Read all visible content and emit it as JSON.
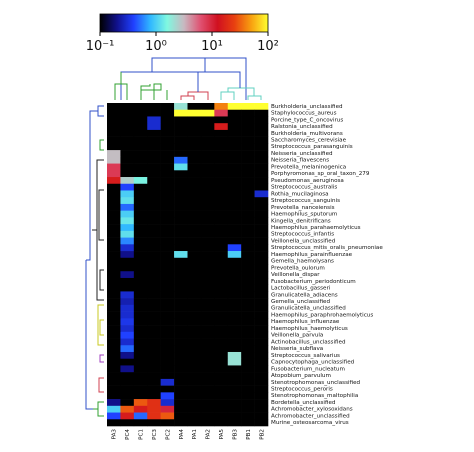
{
  "chart_data": {
    "type": "heatmap",
    "columns": [
      "PA3",
      "PC4",
      "PC1",
      "PC3",
      "PC2",
      "PA4",
      "PA1",
      "PA2",
      "PA5",
      "PB3",
      "PB1",
      "PB2"
    ],
    "rows": [
      "Burkholderia_unclassified",
      "Staphylococcus_aureus",
      "Porcine_type_C_oncovirus",
      "Ralstonia_unclassified",
      "Burkholderia_multivorans",
      "Saccharomyces_cerevisiae",
      "Streptococcus_parasanguinis",
      "Neisseria_unclassified",
      "Neisseria_flavescens",
      "Prevotella_melaninogenica",
      "Porphyromonas_sp_oral_taxon_279",
      "Pseudomonas_aeruginosa",
      "Streptococcus_australis",
      "Rothia_mucilaginosa",
      "Streptococcus_sanguinis",
      "Prevotella_nanceiensis",
      "Haemophilus_sputorum",
      "Kingella_denitrificans",
      "Haemophilus_parahaemolyticus",
      "Streptococcus_infantis",
      "Veillonella_unclassified",
      "Streptococcus_mitis_oralis_pneumoniae",
      "Haemophilus_parainfluenzae",
      "Gemella_haemolysans",
      "Prevotella_oulorum",
      "Veillonella_dispar",
      "Fusobacterium_periodonticum",
      "Lactobacillus_gasseri",
      "Granulicatella_adiacens",
      "Gemella_unclassified",
      "Granulicatella_unclassified",
      "Haemophilus_paraphrohaemolyticus",
      "Haemophilus_influenzae",
      "Haemophilus_haemolyticus",
      "Veillonella_parvula",
      "Actinobacillus_unclassified",
      "Neisseria_subflava",
      "Streptococcus_salivarius",
      "Capnocytophaga_unclassified",
      "Fusobacterium_nucleatum",
      "Atopobium_parvulum",
      "Stenotrophomonas_unclassified",
      "Streptococcus_peroris",
      "Stenotrophomonas_maltophilia",
      "Bordetella_unclassified",
      "Achromobacter_xylosoxidans",
      "Achromobacter_unclassified",
      "Murine_osteosarcoma_virus"
    ],
    "values": [
      [
        0.1,
        0.1,
        0.1,
        0.1,
        0.1,
        2,
        0.1,
        0.1,
        40,
        100,
        100,
        100
      ],
      [
        0.1,
        0.1,
        0.1,
        0.1,
        0.1,
        100,
        100,
        100,
        8,
        0.1,
        0.1,
        0.1
      ],
      [
        0.1,
        0.1,
        0.1,
        0.3,
        0.1,
        0.1,
        0.1,
        0.1,
        0.1,
        0.1,
        0.1,
        0.1
      ],
      [
        0.1,
        0.1,
        0.1,
        0.3,
        0.1,
        0.1,
        0.1,
        0.1,
        15,
        0.1,
        0.1,
        0.1
      ],
      [
        0.1,
        0.1,
        0.1,
        0.1,
        0.1,
        0.1,
        0.1,
        0.1,
        0.1,
        0.1,
        0.1,
        0.1
      ],
      [
        0.1,
        0.1,
        0.1,
        0.1,
        0.1,
        0.1,
        0.1,
        0.1,
        0.1,
        0.1,
        0.1,
        0.1
      ],
      [
        0.1,
        0.1,
        0.1,
        0.1,
        0.1,
        0.1,
        0.1,
        0.1,
        0.1,
        0.1,
        0.1,
        0.1
      ],
      [
        3,
        0.1,
        0.1,
        0.1,
        0.1,
        0.1,
        0.1,
        0.1,
        0.1,
        0.1,
        0.1,
        0.1
      ],
      [
        3,
        0.1,
        0.1,
        0.1,
        0.1,
        0.5,
        0.1,
        0.1,
        0.1,
        0.1,
        0.1,
        0.1
      ],
      [
        8,
        0.1,
        0.1,
        0.1,
        0.1,
        1.2,
        0.1,
        0.1,
        0.1,
        0.1,
        0.1,
        0.1
      ],
      [
        8,
        0.1,
        0.1,
        0.1,
        0.1,
        0.1,
        0.1,
        0.1,
        0.1,
        0.1,
        0.1,
        0.1
      ],
      [
        15,
        2.5,
        1.5,
        0.1,
        0.1,
        0.1,
        0.1,
        0.1,
        0.1,
        0.1,
        0.1,
        0.1
      ],
      [
        0.1,
        0.4,
        0.1,
        0.1,
        0.1,
        0.1,
        0.1,
        0.1,
        0.1,
        0.1,
        0.1,
        0.1
      ],
      [
        0.1,
        1,
        0.1,
        0.1,
        0.1,
        0.1,
        0.1,
        0.1,
        0.1,
        0.1,
        0.1,
        0.3
      ],
      [
        0.1,
        1.2,
        0.1,
        0.1,
        0.1,
        0.1,
        0.1,
        0.1,
        0.1,
        0.1,
        0.1,
        0.1
      ],
      [
        0.1,
        0.5,
        0.1,
        0.1,
        0.1,
        0.1,
        0.1,
        0.1,
        0.1,
        0.1,
        0.1,
        0.1
      ],
      [
        0.1,
        1,
        0.1,
        0.1,
        0.1,
        0.1,
        0.1,
        0.1,
        0.1,
        0.1,
        0.1,
        0.1
      ],
      [
        0.1,
        1.3,
        0.1,
        0.1,
        0.1,
        0.1,
        0.1,
        0.1,
        0.1,
        0.1,
        0.1,
        0.1
      ],
      [
        0.1,
        0.8,
        0.1,
        0.1,
        0.1,
        0.1,
        0.1,
        0.1,
        0.1,
        0.1,
        0.1,
        0.1
      ],
      [
        0.1,
        1.2,
        0.1,
        0.1,
        0.1,
        0.1,
        0.1,
        0.1,
        0.1,
        0.1,
        0.1,
        0.1
      ],
      [
        0.1,
        0.6,
        0.1,
        0.1,
        0.1,
        0.1,
        0.1,
        0.1,
        0.1,
        0.1,
        0.1,
        0.1
      ],
      [
        0.1,
        0.3,
        0.1,
        0.1,
        0.1,
        0.1,
        0.1,
        0.1,
        0.1,
        0.4,
        0.1,
        0.1
      ],
      [
        0.1,
        0.2,
        0.1,
        0.1,
        0.1,
        1.2,
        0.1,
        0.1,
        0.1,
        1,
        0.1,
        0.1
      ],
      [
        0.1,
        0.1,
        0.1,
        0.1,
        0.1,
        0.1,
        0.1,
        0.1,
        0.1,
        0.1,
        0.1,
        0.1
      ],
      [
        0.1,
        0.1,
        0.1,
        0.1,
        0.1,
        0.1,
        0.1,
        0.1,
        0.1,
        0.1,
        0.1,
        0.1
      ],
      [
        0.1,
        0.2,
        0.1,
        0.1,
        0.1,
        0.1,
        0.1,
        0.1,
        0.1,
        0.1,
        0.1,
        0.1
      ],
      [
        0.1,
        0.1,
        0.1,
        0.1,
        0.1,
        0.1,
        0.1,
        0.1,
        0.1,
        0.1,
        0.1,
        0.1
      ],
      [
        0.1,
        0.1,
        0.1,
        0.1,
        0.1,
        0.1,
        0.1,
        0.1,
        0.1,
        0.1,
        0.1,
        0.1
      ],
      [
        0.1,
        0.3,
        0.1,
        0.1,
        0.1,
        0.1,
        0.1,
        0.1,
        0.1,
        0.1,
        0.1,
        0.1
      ],
      [
        0.1,
        0.25,
        0.1,
        0.1,
        0.1,
        0.1,
        0.1,
        0.1,
        0.1,
        0.1,
        0.1,
        0.1
      ],
      [
        0.1,
        0.3,
        0.1,
        0.1,
        0.1,
        0.1,
        0.1,
        0.1,
        0.1,
        0.1,
        0.1,
        0.1
      ],
      [
        0.1,
        0.3,
        0.1,
        0.1,
        0.1,
        0.1,
        0.1,
        0.1,
        0.1,
        0.1,
        0.1,
        0.1
      ],
      [
        0.1,
        0.35,
        0.1,
        0.1,
        0.1,
        0.1,
        0.1,
        0.1,
        0.1,
        0.1,
        0.1,
        0.1
      ],
      [
        0.1,
        0.3,
        0.1,
        0.1,
        0.1,
        0.1,
        0.1,
        0.1,
        0.1,
        0.1,
        0.1,
        0.1
      ],
      [
        0.1,
        0.4,
        0.1,
        0.1,
        0.1,
        0.1,
        0.1,
        0.1,
        0.1,
        0.1,
        0.1,
        0.1
      ],
      [
        0.1,
        0.3,
        0.1,
        0.1,
        0.1,
        0.1,
        0.1,
        0.1,
        0.1,
        0.1,
        0.1,
        0.1
      ],
      [
        0.1,
        0.5,
        0.1,
        0.1,
        0.1,
        0.1,
        0.1,
        0.1,
        0.1,
        0.1,
        0.1,
        0.1
      ],
      [
        0.1,
        0.2,
        0.1,
        0.1,
        0.1,
        0.1,
        0.1,
        0.1,
        0.1,
        2,
        0.1,
        0.1
      ],
      [
        0.1,
        0.1,
        0.1,
        0.1,
        0.1,
        0.1,
        0.1,
        0.1,
        0.1,
        2,
        0.1,
        0.1
      ],
      [
        0.1,
        0.2,
        0.1,
        0.1,
        0.1,
        0.1,
        0.1,
        0.1,
        0.1,
        0.1,
        0.1,
        0.1
      ],
      [
        0.1,
        0.1,
        0.1,
        0.1,
        0.1,
        0.1,
        0.1,
        0.1,
        0.1,
        0.1,
        0.1,
        0.1
      ],
      [
        0.1,
        0.1,
        0.1,
        0.1,
        0.3,
        0.1,
        0.1,
        0.1,
        0.1,
        0.1,
        0.1,
        0.1
      ],
      [
        0.1,
        0.1,
        0.1,
        0.1,
        0.1,
        0.1,
        0.1,
        0.1,
        0.1,
        0.1,
        0.1,
        0.1
      ],
      [
        0.1,
        0.1,
        0.1,
        0.1,
        0.4,
        0.1,
        0.1,
        0.1,
        0.1,
        0.1,
        0.1,
        0.1
      ],
      [
        0.2,
        0.1,
        30,
        20,
        0.3,
        0.1,
        0.1,
        0.1,
        0.1,
        0.1,
        0.1,
        0.1
      ],
      [
        1,
        30,
        15,
        20,
        10,
        0.1,
        0.1,
        0.1,
        0.1,
        0.1,
        0.1,
        0.1
      ],
      [
        0.4,
        15,
        0.5,
        20,
        30,
        0.1,
        0.1,
        0.1,
        0.1,
        0.1,
        0.1,
        0.1
      ],
      [
        0.1,
        0.1,
        0.1,
        0.1,
        0.1,
        0.1,
        0.1,
        0.1,
        0.1,
        0.1,
        0.1,
        0.1
      ]
    ],
    "colorbar": {
      "lim": [
        0.1,
        100
      ],
      "log": true,
      "ticks": [
        {
          "value": 0.1,
          "label": "10⁻¹"
        },
        {
          "value": 1,
          "label": "10⁰"
        },
        {
          "value": 10,
          "label": "10¹"
        },
        {
          "value": 100,
          "label": "10²"
        }
      ]
    },
    "colormap": [
      "#000000",
      "#10108a",
      "#2040ff",
      "#30b8ff",
      "#80f8e0",
      "#c8b8c0",
      "#e05070",
      "#d01020",
      "#e84010",
      "#f8a010",
      "#ffff30"
    ]
  }
}
